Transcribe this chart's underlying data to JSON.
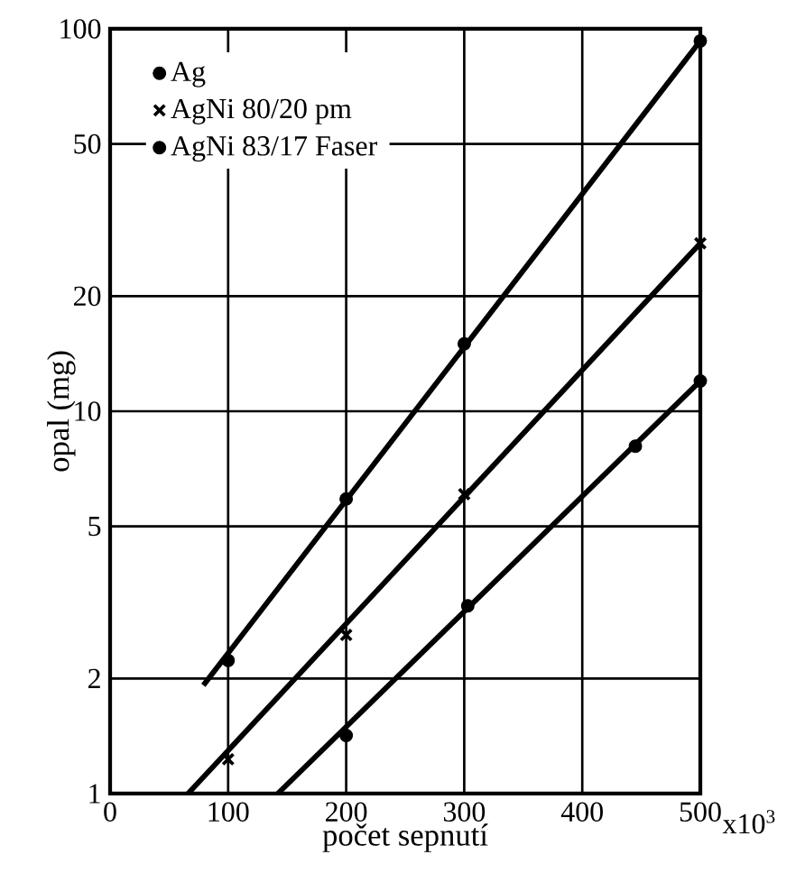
{
  "chart_data": {
    "type": "scatter",
    "xlabel": "počet sepnutí",
    "ylabel": "opal (mg)",
    "log": "y",
    "grid": true,
    "legend": "top left",
    "xlim": [
      0,
      500
    ],
    "ylim": [
      1,
      100
    ],
    "xticks": [
      0,
      100,
      200,
      300,
      400,
      500
    ],
    "annotations": [
      "x10$^{3}$"
    ],
    "yticks": [
      1,
      2,
      5,
      10,
      20,
      50,
      100
    ],
    "series": [
      {
        "name": "Ag",
        "color": "#000000",
        "marker": "circle",
        "x": [
          100,
          200,
          300,
          500
        ],
        "values": [
          2.23,
          5.9,
          15,
          93
        ]
      },
      {
        "name": "AgNi 80/20 pm",
        "color": "#000000",
        "marker": "cross",
        "x": [
          100,
          200,
          300,
          500
        ],
        "values": [
          1.23,
          2.6,
          6.07,
          27.5
        ]
      },
      {
        "name": "AgNi 83/17 Faser",
        "color": "#000000",
        "marker": "circle",
        "x": [
          200,
          303,
          445,
          500
        ],
        "values": [
          1.42,
          3.1,
          8.1,
          12
        ]
      },
      {
        "type": "line",
        "color": "#000000",
        "marker": "none",
        "x": [
          79,
          500
        ],
        "values": [
          1.92,
          93
        ]
      },
      {
        "type": "line",
        "color": "#000000",
        "marker": "none",
        "x": [
          66,
          500
        ],
        "values": [
          1,
          27.5
        ]
      },
      {
        "type": "line",
        "color": "#000000",
        "marker": "none",
        "x": [
          142,
          500
        ],
        "values": [
          1,
          12
        ]
      }
    ]
  }
}
